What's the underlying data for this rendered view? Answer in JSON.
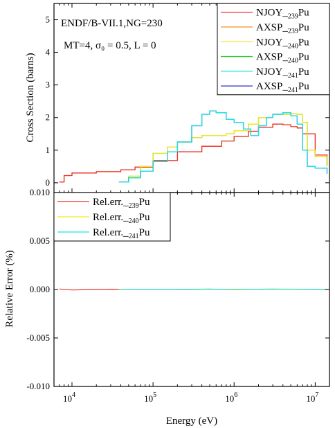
{
  "chart_data": [
    {
      "type": "line",
      "annotations": [
        "ENDF/B-VII.1,NG=230",
        "MT=4, σ₀ = 0.5, L = 0"
      ],
      "xlabel": "",
      "ylabel": "Cross Section (barns)",
      "xscale": "log",
      "xlim": [
        6000,
        15000000
      ],
      "ylim": [
        -0.3,
        5.5
      ],
      "yticks": [
        "0",
        "1",
        "2",
        "3",
        "4",
        "5"
      ],
      "grid": false,
      "legend_position": "top-right",
      "series": [
        {
          "name": "NJOY_239Pu",
          "color": "#e8322a",
          "x": [
            7000,
            8000,
            10000,
            20000,
            40000,
            60000,
            100000,
            200000,
            400000,
            700000,
            1000000,
            1500000,
            2000000,
            3000000,
            4000000,
            5000000,
            6000000,
            7000000,
            10000000,
            14000000
          ],
          "y": [
            0.02,
            0.22,
            0.3,
            0.34,
            0.4,
            0.48,
            0.68,
            0.95,
            1.12,
            1.28,
            1.42,
            1.58,
            1.7,
            1.8,
            1.78,
            1.72,
            1.68,
            1.5,
            0.85,
            0.55
          ]
        },
        {
          "name": "AXSP_239Pu",
          "color": "#f39a38",
          "x": [
            7000,
            8000,
            10000,
            20000,
            40000,
            60000,
            100000,
            200000,
            400000,
            700000,
            1000000,
            1500000,
            2000000,
            3000000,
            4000000,
            5000000,
            6000000,
            7000000,
            10000000,
            14000000
          ],
          "y": [
            0.02,
            0.22,
            0.3,
            0.34,
            0.4,
            0.48,
            0.68,
            0.95,
            1.12,
            1.28,
            1.42,
            1.58,
            1.7,
            1.8,
            1.78,
            1.72,
            1.68,
            1.5,
            0.85,
            0.55
          ]
        },
        {
          "name": "NJOY_240Pu",
          "color": "#f5e51b",
          "x": [
            38000,
            50000,
            70000,
            100000,
            150000,
            200000,
            300000,
            400000,
            600000,
            800000,
            1000000,
            1500000,
            2000000,
            3000000,
            4000000,
            5000000,
            6000000,
            7000000,
            8000000,
            10000000,
            14000000
          ],
          "y": [
            0.02,
            0.2,
            0.5,
            0.9,
            1.1,
            1.25,
            1.38,
            1.45,
            1.45,
            1.5,
            1.6,
            1.8,
            2.0,
            2.1,
            2.1,
            2.12,
            2.1,
            1.85,
            1.0,
            0.8,
            0.5
          ]
        },
        {
          "name": "AXSP_240Pu",
          "color": "#22c830",
          "x": [
            38000,
            50000,
            70000,
            100000,
            150000,
            200000,
            300000,
            400000,
            600000,
            800000,
            1000000,
            1500000,
            2000000,
            3000000,
            4000000,
            5000000,
            6000000,
            7000000,
            8000000,
            10000000,
            14000000
          ],
          "y": [
            0.02,
            0.2,
            0.5,
            0.9,
            1.1,
            1.25,
            1.38,
            1.45,
            1.45,
            1.5,
            1.6,
            1.8,
            2.0,
            2.1,
            2.1,
            2.12,
            2.1,
            1.85,
            1.0,
            0.8,
            0.5
          ]
        },
        {
          "name": "NJOY_241Pu",
          "color": "#1ee4e4",
          "x": [
            38000,
            50000,
            70000,
            100000,
            150000,
            200000,
            300000,
            400000,
            500000,
            600000,
            800000,
            1000000,
            1300000,
            1600000,
            2000000,
            2500000,
            3000000,
            4000000,
            5000000,
            6000000,
            7000000,
            8000000,
            10000000,
            14000000
          ],
          "y": [
            0.02,
            0.15,
            0.35,
            0.65,
            0.95,
            1.25,
            1.75,
            2.1,
            2.2,
            2.15,
            1.95,
            1.85,
            1.65,
            1.45,
            1.75,
            2.0,
            2.1,
            2.15,
            2.05,
            1.8,
            1.0,
            0.5,
            0.45,
            0.28
          ]
        },
        {
          "name": "AXSP_241Pu",
          "color": "#2a2ac8",
          "x": [
            38000,
            50000,
            70000,
            100000,
            150000,
            200000,
            300000,
            400000,
            500000,
            600000,
            800000,
            1000000,
            1300000,
            1600000,
            2000000,
            2500000,
            3000000,
            4000000,
            5000000,
            6000000,
            7000000,
            8000000,
            10000000,
            14000000
          ],
          "y": [
            0.02,
            0.15,
            0.35,
            0.65,
            0.95,
            1.25,
            1.75,
            2.1,
            2.2,
            2.15,
            1.95,
            1.85,
            1.65,
            1.45,
            1.75,
            2.0,
            2.1,
            2.15,
            2.05,
            1.8,
            1.0,
            0.5,
            0.45,
            0.28
          ]
        }
      ]
    },
    {
      "type": "line",
      "xlabel": "Energy (eV)",
      "ylabel": "Relative Error (%)",
      "xscale": "log",
      "xlim": [
        6000,
        15000000
      ],
      "ylim": [
        -0.01,
        0.01
      ],
      "yticks": [
        "-0.010",
        "-0.005",
        "0.000",
        "0.005",
        "0.010"
      ],
      "xticks": [
        {
          "value": 10000,
          "base": "10",
          "exp": "4"
        },
        {
          "value": 100000,
          "base": "10",
          "exp": "5"
        },
        {
          "value": 1000000,
          "base": "10",
          "exp": "6"
        },
        {
          "value": 10000000,
          "base": "10",
          "exp": "7"
        }
      ],
      "grid": false,
      "legend_position": "top-left",
      "series": [
        {
          "name": "Rel.err._239Pu",
          "color": "#e8322a",
          "x": [
            7000,
            10000,
            30000,
            100000,
            1000000,
            14000000
          ],
          "y": [
            5e-05,
            -5e-05,
            3e-05,
            -2e-05,
            2e-05,
            0.0
          ]
        },
        {
          "name": "Rel.err._240Pu",
          "color": "#f5e51b",
          "x": [
            38000,
            100000,
            1000000,
            14000000
          ],
          "y": [
            3e-05,
            -2e-05,
            3e-05,
            0.0
          ]
        },
        {
          "name": "Rel.err._241Pu",
          "color": "#1ee4e4",
          "x": [
            38000,
            100000,
            500000,
            1000000,
            3000000,
            14000000
          ],
          "y": [
            2e-05,
            -3e-05,
            4e-05,
            -2e-05,
            5e-05,
            0.0
          ]
        }
      ]
    }
  ]
}
